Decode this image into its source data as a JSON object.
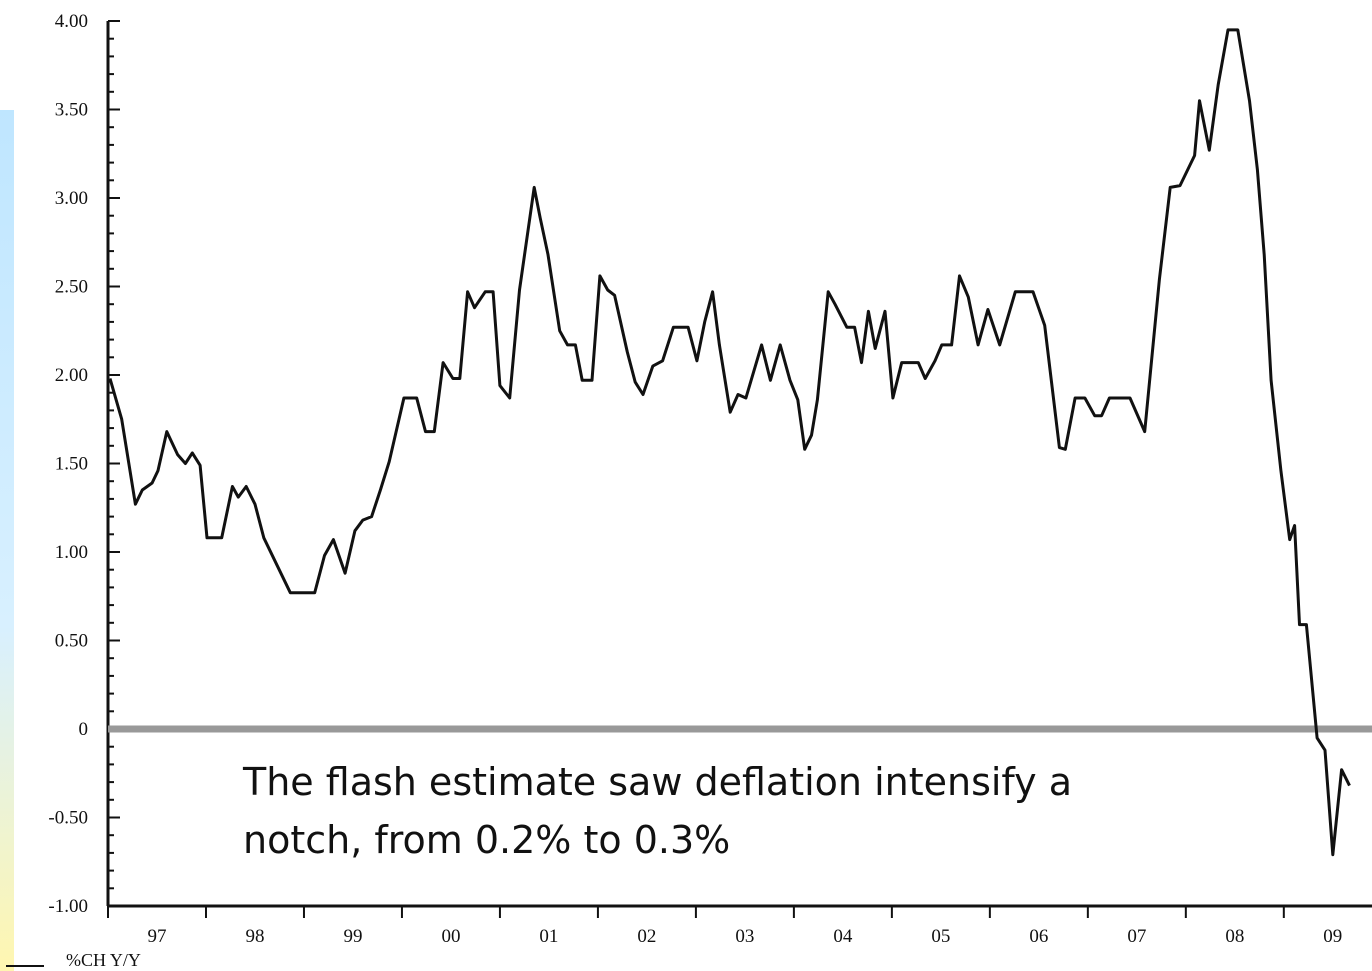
{
  "chart_data": {
    "type": "line",
    "annotation": [
      "The flash estimate saw deflation intensify a",
      "notch, from 0.2% to 0.3%"
    ],
    "series": [
      {
        "name": "%CH Y/Y",
        "color": "#111111",
        "x": [
          1997.02,
          1997.14,
          1997.28,
          1997.35,
          1997.45,
          1997.51,
          1997.6,
          1997.71,
          1997.79,
          1997.86,
          1997.94,
          1998.01,
          1998.16,
          1998.27,
          1998.33,
          1998.41,
          1998.5,
          1998.59,
          1998.73,
          1998.86,
          1999.11,
          1999.21,
          1999.3,
          1999.42,
          1999.52,
          1999.6,
          1999.69,
          1999.78,
          1999.87,
          2000.02,
          2000.15,
          2000.24,
          2000.33,
          2000.42,
          2000.52,
          2000.59,
          2000.67,
          2000.74,
          2000.85,
          2000.93,
          2001.0,
          2001.1,
          2001.2,
          2001.35,
          2001.41,
          2001.49,
          2001.61,
          2001.69,
          2001.77,
          2001.84,
          2001.94,
          2002.02,
          2002.1,
          2002.17,
          2002.3,
          2002.38,
          2002.46,
          2002.56,
          2002.66,
          2002.77,
          2002.92,
          2003.01,
          2003.09,
          2003.17,
          2003.24,
          2003.35,
          2003.43,
          2003.51,
          2003.67,
          2003.76,
          2003.86,
          2003.96,
          2004.04,
          2004.11,
          2004.18,
          2004.24,
          2004.35,
          2004.42,
          2004.54,
          2004.62,
          2004.69,
          2004.76,
          2004.83,
          2004.93,
          2005.01,
          2005.1,
          2005.27,
          2005.34,
          2005.44,
          2005.51,
          2005.61,
          2005.69,
          2005.78,
          2005.88,
          2005.98,
          2006.1,
          2006.26,
          2006.44,
          2006.56,
          2006.71,
          2006.77,
          2006.87,
          2006.97,
          2007.07,
          2007.14,
          2007.22,
          2007.43,
          2007.58,
          2007.73,
          2007.84,
          2007.94,
          2008.09,
          2008.14,
          2008.24,
          2008.33,
          2008.43,
          2008.53,
          2008.65,
          2008.73,
          2008.8,
          2008.87,
          2008.97,
          2009.06,
          2009.11,
          2009.16,
          2009.23,
          2009.34,
          2009.42,
          2009.5,
          2009.59,
          2009.67
        ],
        "values": [
          1.98,
          1.75,
          1.27,
          1.35,
          1.39,
          1.46,
          1.68,
          1.55,
          1.5,
          1.56,
          1.49,
          1.08,
          1.08,
          1.37,
          1.31,
          1.37,
          1.27,
          1.08,
          0.92,
          0.77,
          0.77,
          0.98,
          1.07,
          0.88,
          1.12,
          1.18,
          1.2,
          1.35,
          1.51,
          1.87,
          1.87,
          1.68,
          1.68,
          2.07,
          1.98,
          1.98,
          2.47,
          2.38,
          2.47,
          2.47,
          1.94,
          1.87,
          2.48,
          3.06,
          2.89,
          2.68,
          2.25,
          2.17,
          2.17,
          1.97,
          1.97,
          2.56,
          2.48,
          2.45,
          2.13,
          1.96,
          1.89,
          2.05,
          2.08,
          2.27,
          2.27,
          2.08,
          2.3,
          2.47,
          2.17,
          1.79,
          1.89,
          1.87,
          2.17,
          1.97,
          2.17,
          1.97,
          1.86,
          1.58,
          1.66,
          1.86,
          2.47,
          2.4,
          2.27,
          2.27,
          2.07,
          2.36,
          2.15,
          2.36,
          1.87,
          2.07,
          2.07,
          1.98,
          2.08,
          2.17,
          2.17,
          2.56,
          2.44,
          2.17,
          2.37,
          2.17,
          2.47,
          2.47,
          2.28,
          1.59,
          1.58,
          1.87,
          1.87,
          1.77,
          1.77,
          1.87,
          1.87,
          1.68,
          2.54,
          3.06,
          3.07,
          3.24,
          3.55,
          3.27,
          3.64,
          3.95,
          3.95,
          3.55,
          3.16,
          2.68,
          1.97,
          1.46,
          1.07,
          1.15,
          0.59,
          0.59,
          -0.05,
          -0.12,
          -0.71,
          -0.23,
          -0.32
        ]
      }
    ],
    "xlim": [
      1997,
      2009.9
    ],
    "xticks": [
      {
        "value": 1997.5,
        "label": "97"
      },
      {
        "value": 1998.5,
        "label": "98"
      },
      {
        "value": 1999.5,
        "label": "99"
      },
      {
        "value": 2000.5,
        "label": "00"
      },
      {
        "value": 2001.5,
        "label": "01"
      },
      {
        "value": 2002.5,
        "label": "02"
      },
      {
        "value": 2003.5,
        "label": "03"
      },
      {
        "value": 2004.5,
        "label": "04"
      },
      {
        "value": 2005.5,
        "label": "05"
      },
      {
        "value": 2006.5,
        "label": "06"
      },
      {
        "value": 2007.5,
        "label": "07"
      },
      {
        "value": 2008.5,
        "label": "08"
      },
      {
        "value": 2009.5,
        "label": "09"
      }
    ],
    "xminorticks": [
      1997,
      1998,
      1999,
      2000,
      2001,
      2002,
      2003,
      2004,
      2005,
      2006,
      2007,
      2008,
      2009
    ],
    "ylim": [
      -1,
      4
    ],
    "yticks": [
      {
        "value": 4,
        "label": "4.00"
      },
      {
        "value": 3.5,
        "label": "3.50"
      },
      {
        "value": 3,
        "label": "3.00"
      },
      {
        "value": 2.5,
        "label": "2.50"
      },
      {
        "value": 2,
        "label": "2.00"
      },
      {
        "value": 1.5,
        "label": "1.50"
      },
      {
        "value": 1,
        "label": "1.00"
      },
      {
        "value": 0.5,
        "label": "0.50"
      },
      0,
      {
        "value": -0.5,
        "label": "-0.50"
      },
      {
        "value": -1,
        "label": "-1.00"
      }
    ],
    "yminor_step": 0.1,
    "hline": {
      "value": 0,
      "color": "#999999"
    },
    "grid": false
  }
}
